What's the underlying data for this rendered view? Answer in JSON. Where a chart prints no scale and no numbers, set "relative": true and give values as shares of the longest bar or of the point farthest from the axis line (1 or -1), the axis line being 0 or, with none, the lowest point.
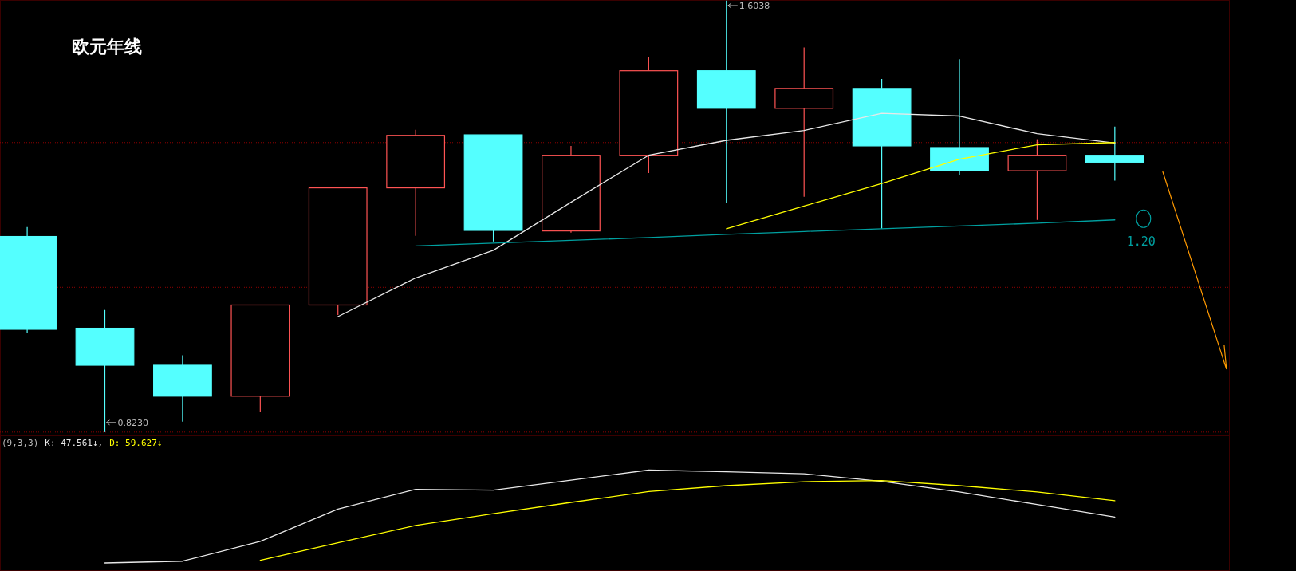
{
  "chart_data": [
    {
      "type": "candlestick",
      "title": "欧元年线",
      "categories": [
        null,
        null,
        null,
        null,
        null,
        null,
        null,
        null,
        null,
        null,
        null,
        null,
        null,
        null,
        null
      ],
      "ohlc": [
        [
          1.177,
          1.194,
          1.002,
          1.009
        ],
        [
          1.011,
          1.044,
          0.823,
          0.944
        ],
        [
          0.944,
          0.962,
          0.842,
          0.888
        ],
        [
          0.888,
          1.053,
          0.859,
          1.053
        ],
        [
          1.053,
          1.266,
          1.035,
          1.265
        ],
        [
          1.265,
          1.37,
          1.178,
          1.36
        ],
        [
          1.361,
          1.361,
          1.168,
          1.188
        ],
        [
          1.187,
          1.341,
          1.184,
          1.324
        ],
        [
          1.324,
          1.501,
          1.292,
          1.477
        ],
        [
          1.477,
          1.6038,
          1.237,
          1.409
        ],
        [
          1.409,
          1.519,
          1.249,
          1.445
        ],
        [
          1.445,
          1.462,
          1.191,
          1.341
        ],
        [
          1.338,
          1.498,
          1.289,
          1.296
        ],
        [
          1.296,
          1.353,
          1.207,
          1.324
        ],
        [
          1.324,
          1.376,
          1.278,
          1.311
        ]
      ],
      "colors": [
        "#54ffff",
        "#54ffff",
        "#54ffff",
        "#ff5454",
        "#ff5454",
        "#ff5454",
        "#54ffff",
        "#ff5454",
        "#ff5454",
        "#54ffff",
        "#ff5454",
        "#54ffff",
        "#54ffff",
        "#ff5454",
        "#54ffff"
      ],
      "series": [
        {
          "type": "line",
          "color": "#e8e8e8",
          "values": [
            null,
            null,
            null,
            null,
            1.032,
            1.102,
            1.152,
            1.239,
            1.324,
            1.351,
            1.369,
            1.4,
            1.395,
            1.363,
            1.346
          ]
        },
        {
          "type": "line",
          "color": "#ffff00",
          "values": [
            null,
            null,
            null,
            null,
            null,
            null,
            null,
            null,
            null,
            1.191,
            1.232,
            1.273,
            1.317,
            1.343,
            1.347
          ]
        },
        {
          "type": "line",
          "color": "#00a0a0",
          "values": [
            null,
            null,
            null,
            null,
            null,
            1.16,
            1.165,
            1.17,
            1.175,
            1.181,
            1.186,
            1.191,
            1.196,
            1.201,
            1.207
          ]
        }
      ],
      "annotations": [
        "1.6038",
        "0.8230",
        "1.20"
      ],
      "ylim": [
        0.817,
        1.605
      ],
      "yticks": [
        {
          "value": 1.347,
          "label": null
        },
        {
          "value": 1.085,
          "label": null
        },
        {
          "value": 0.823,
          "label": null
        }
      ],
      "grid": "y"
    },
    {
      "type": "line",
      "title": "(9,3,3)",
      "relative": true,
      "categories": [
        null,
        null,
        null,
        null,
        null,
        null,
        null,
        null,
        null,
        null,
        null,
        null,
        null,
        null,
        null
      ],
      "series": [
        {
          "name": "K: 47.561↓,",
          "color": "#e8e8e8",
          "values": [
            null,
            0.079,
            0.097,
            0.294,
            0.613,
            0.81,
            0.802,
            0.901,
            1,
            0.983,
            0.964,
            0.888,
            0.783,
            0.659,
            0.534
          ]
        },
        {
          "name": "D: 59.627↓",
          "color": "#ffff00",
          "values": [
            null,
            null,
            null,
            0.106,
            0.28,
            0.451,
            0.569,
            0.68,
            0.787,
            0.846,
            0.885,
            0.896,
            0.846,
            0.783,
            0.696
          ]
        }
      ]
    }
  ]
}
